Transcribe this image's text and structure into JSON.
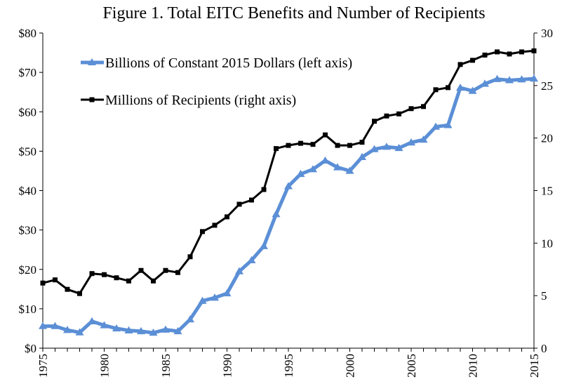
{
  "chart_data": {
    "type": "line",
    "title": "Figure 1. Total EITC Benefits and Number of Recipients",
    "x": [
      1975,
      1976,
      1977,
      1978,
      1979,
      1980,
      1981,
      1982,
      1983,
      1984,
      1985,
      1986,
      1987,
      1988,
      1989,
      1990,
      1991,
      1992,
      1993,
      1994,
      1995,
      1996,
      1997,
      1998,
      1999,
      2000,
      2001,
      2002,
      2003,
      2004,
      2005,
      2006,
      2007,
      2008,
      2009,
      2010,
      2011,
      2012,
      2013,
      2014,
      2015
    ],
    "x_ticks": [
      "1975",
      "1980",
      "1985",
      "1990",
      "1995",
      "2000",
      "2005",
      "2010",
      "2015"
    ],
    "left_axis": {
      "ylim": [
        0,
        80
      ],
      "ticks": [
        "$0",
        "$10",
        "$20",
        "$30",
        "$40",
        "$50",
        "$60",
        "$70",
        "$80"
      ]
    },
    "right_axis": {
      "ylim": [
        0,
        30
      ],
      "ticks": [
        "0",
        "5",
        "10",
        "15",
        "20",
        "25",
        "30"
      ]
    },
    "series": [
      {
        "name": "Billions of Constant 2015 Dollars (left axis)",
        "axis": "left",
        "color": "#5b8fd6",
        "marker": "triangle",
        "values": [
          5.6,
          5.6,
          4.6,
          4.0,
          6.8,
          5.8,
          5.0,
          4.5,
          4.3,
          3.9,
          4.7,
          4.3,
          7.3,
          12.0,
          12.8,
          13.9,
          19.5,
          22.3,
          25.9,
          34.0,
          41.1,
          44.2,
          45.4,
          47.6,
          45.9,
          45.0,
          48.5,
          50.5,
          51.1,
          50.8,
          52.2,
          52.9,
          56.2,
          56.6,
          66.1,
          65.3,
          67.1,
          68.3,
          68.0,
          68.2,
          68.4
        ]
      },
      {
        "name": "Millions of Recipients (right axis)",
        "axis": "right",
        "color": "#000000",
        "marker": "square",
        "values": [
          6.2,
          6.5,
          5.6,
          5.2,
          7.1,
          7.0,
          6.7,
          6.4,
          7.4,
          6.4,
          7.4,
          7.2,
          8.7,
          11.1,
          11.7,
          12.5,
          13.7,
          14.1,
          15.1,
          19.0,
          19.3,
          19.5,
          19.4,
          20.3,
          19.3,
          19.3,
          19.6,
          21.6,
          22.1,
          22.3,
          22.8,
          23.0,
          24.6,
          24.8,
          27.0,
          27.4,
          27.9,
          28.2,
          28.0,
          28.2,
          28.3
        ]
      }
    ],
    "legend": "top-left, inside plot"
  },
  "colors": {
    "series1": "#5b8fd6",
    "series2": "#000000",
    "axis": "#000000"
  }
}
